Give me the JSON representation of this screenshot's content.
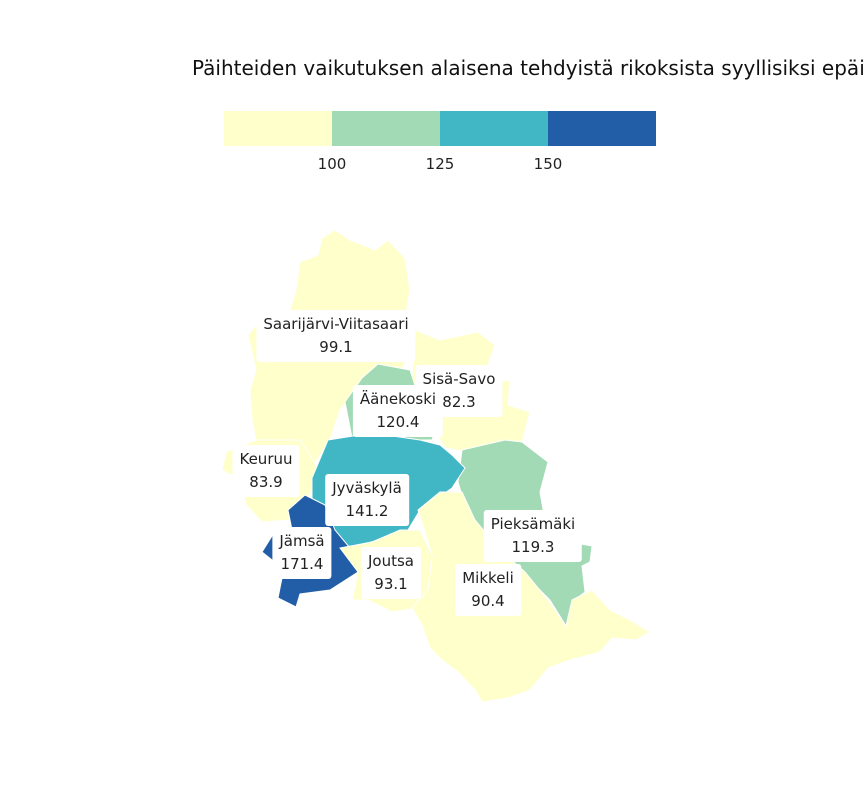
{
  "title": "Päihteiden vaikutuksen alaisena tehdyistä rikoksista syyllisiksi epäillyt",
  "legend": {
    "colors": [
      "#ffffcc",
      "#a1dab4",
      "#41b6c4",
      "#225ea8"
    ],
    "ticks": [
      "100",
      "125",
      "150"
    ]
  },
  "regions": [
    {
      "name": "Saarijärvi-Viitasaari",
      "value": "99.1",
      "color": "#ffffcc"
    },
    {
      "name": "Sisä-Savo",
      "value": "82.3",
      "color": "#ffffcc"
    },
    {
      "name": "Äänekoski",
      "value": "120.4",
      "color": "#a1dab4"
    },
    {
      "name": "Keuruu",
      "value": "83.9",
      "color": "#ffffcc"
    },
    {
      "name": "Jyväskylä",
      "value": "141.2",
      "color": "#41b6c4"
    },
    {
      "name": "Jämsä",
      "value": "171.4",
      "color": "#225ea8"
    },
    {
      "name": "Joutsa",
      "value": "93.1",
      "color": "#ffffcc"
    },
    {
      "name": "Pieksämäki",
      "value": "119.3",
      "color": "#a1dab4"
    },
    {
      "name": "Mikkeli",
      "value": "90.4",
      "color": "#ffffcc"
    }
  ]
}
